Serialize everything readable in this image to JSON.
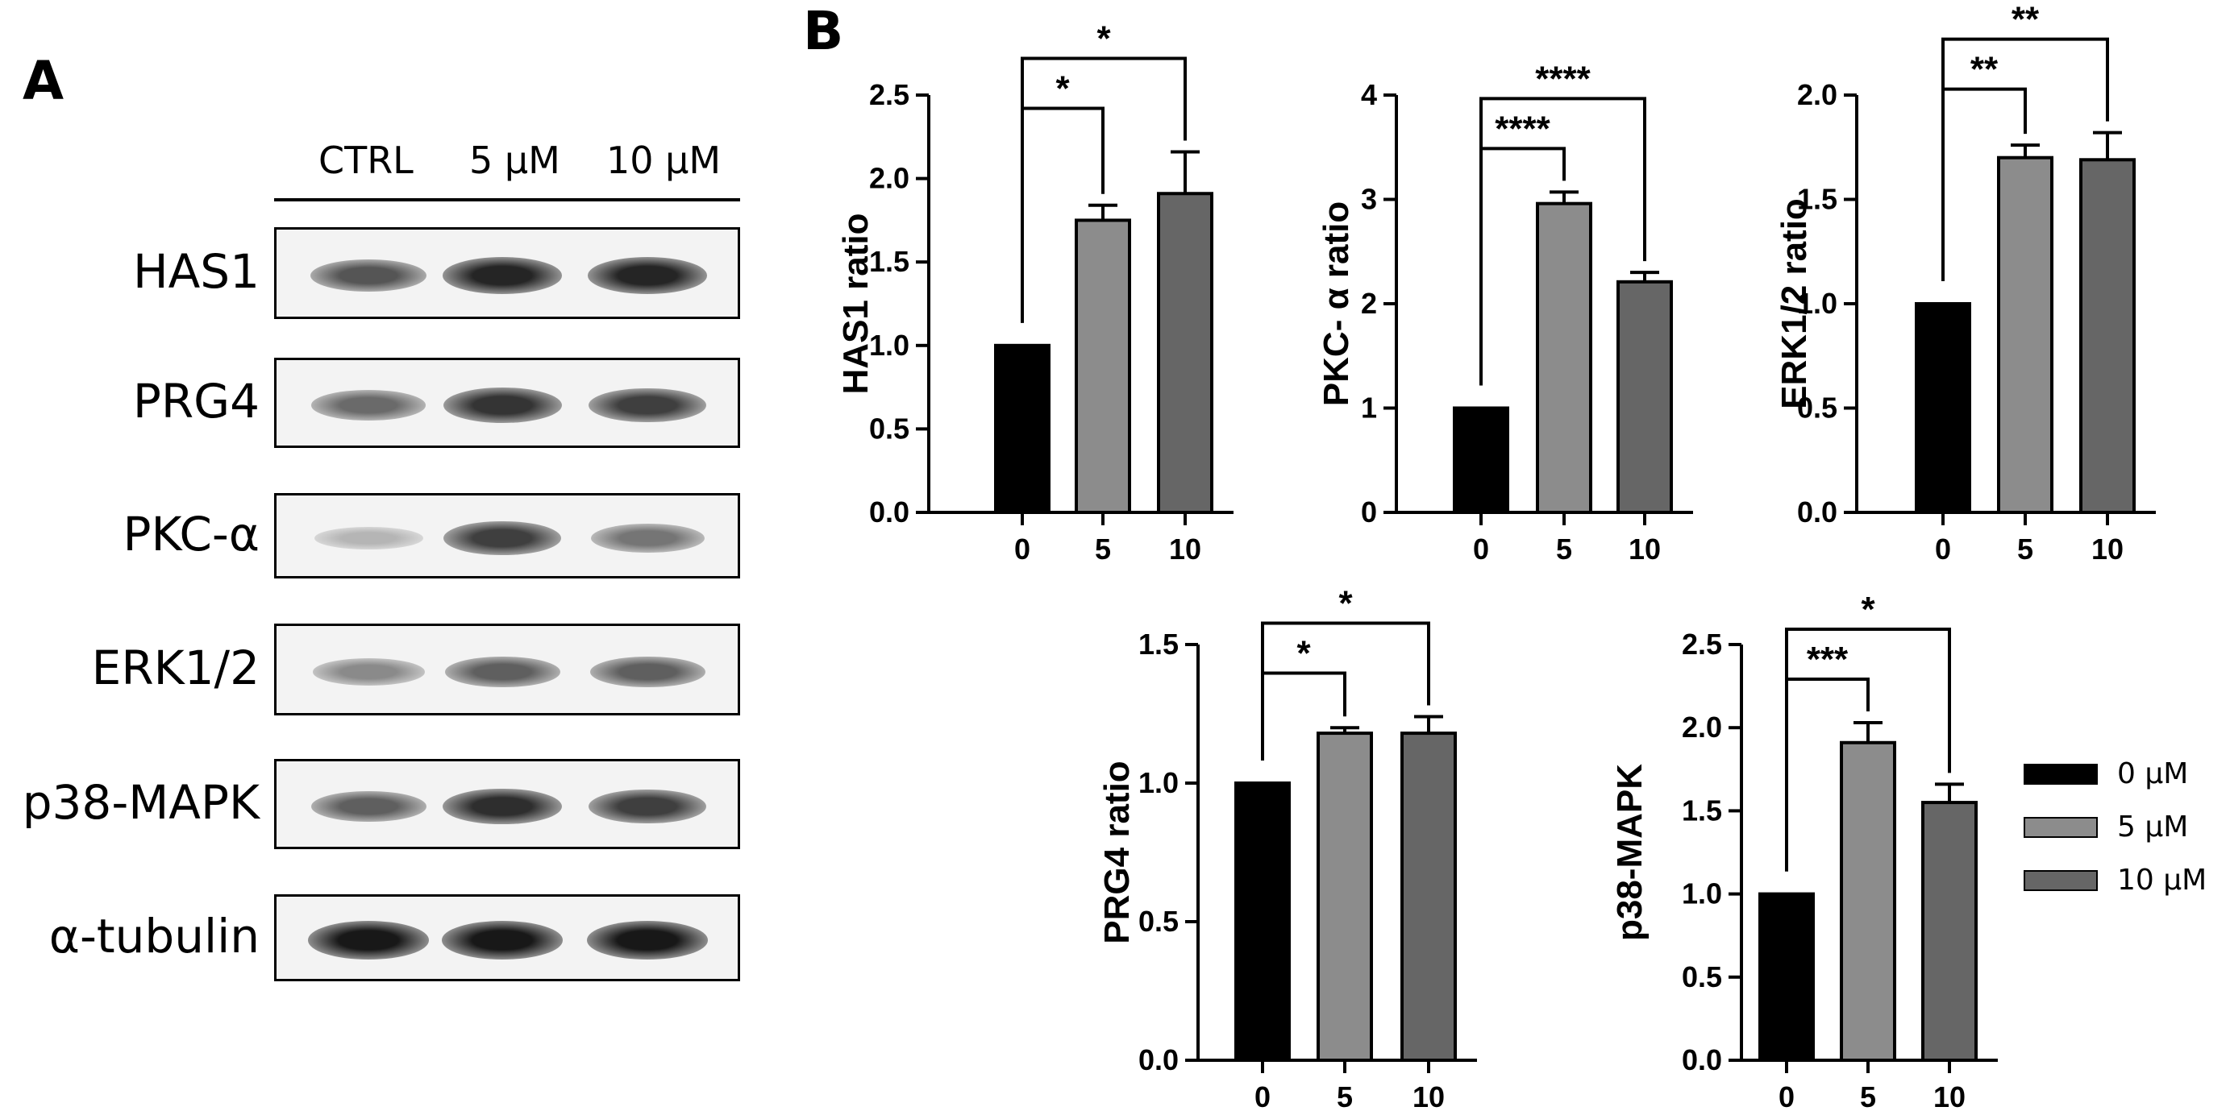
{
  "panel_a": {
    "letter": "A",
    "conditions": [
      "CTRL",
      "5 μM",
      "10 μM"
    ],
    "blots": [
      {
        "label": "HAS1",
        "intensity": [
          0.7,
          0.92,
          0.92
        ]
      },
      {
        "label": "PRG4",
        "intensity": [
          0.6,
          0.85,
          0.8
        ]
      },
      {
        "label": "PKC-α",
        "intensity": [
          0.25,
          0.8,
          0.55
        ]
      },
      {
        "label": "ERK1/2",
        "intensity": [
          0.45,
          0.65,
          0.65
        ]
      },
      {
        "label": "p38-MAPK",
        "intensity": [
          0.65,
          0.88,
          0.8
        ]
      },
      {
        "label": "α-tubulin",
        "intensity": [
          0.98,
          0.98,
          0.98
        ]
      }
    ]
  },
  "panel_b": {
    "letter": "B"
  },
  "legend": {
    "items": [
      {
        "label": "0 μM",
        "color": "#000000"
      },
      {
        "label": "5 μM",
        "color": "#8c8c8c"
      },
      {
        "label": "10 μM",
        "color": "#666666"
      }
    ]
  },
  "colors": {
    "bar_0": "#000000",
    "bar_5": "#8c8c8c",
    "bar_10": "#666666"
  },
  "chart_data": [
    {
      "type": "bar",
      "categories": [
        "0",
        "5",
        "10"
      ],
      "values": [
        1.0,
        1.75,
        1.91
      ],
      "errors": [
        0,
        0.09,
        0.25
      ],
      "ylabel": "HAS1 ratio",
      "ylim": [
        0,
        2.5
      ],
      "yticks": [
        "0.0",
        "0.5",
        "1.0",
        "1.5",
        "2.0",
        "2.5"
      ],
      "significance": [
        {
          "from": "0",
          "to": "5",
          "label": "*"
        },
        {
          "from": "0",
          "to": "10",
          "label": "*"
        }
      ]
    },
    {
      "type": "bar",
      "categories": [
        "0",
        "5",
        "10"
      ],
      "values": [
        1.0,
        2.96,
        2.21
      ],
      "errors": [
        0,
        0.11,
        0.09
      ],
      "ylabel": "PKC- α ratio",
      "ylim": [
        0,
        4
      ],
      "yticks": [
        "0",
        "1",
        "2",
        "3",
        "4"
      ],
      "significance": [
        {
          "from": "0",
          "to": "5",
          "label": "****"
        },
        {
          "from": "0",
          "to": "10",
          "label": "****"
        }
      ]
    },
    {
      "type": "bar",
      "categories": [
        "0",
        "5",
        "10"
      ],
      "values": [
        1.0,
        1.7,
        1.69
      ],
      "errors": [
        0,
        0.06,
        0.13
      ],
      "ylabel": "ERK1/2 ratio",
      "ylim": [
        0,
        2.0
      ],
      "yticks": [
        "0.0",
        "0.5",
        "1.0",
        "1.5",
        "2.0"
      ],
      "significance": [
        {
          "from": "0",
          "to": "5",
          "label": "**"
        },
        {
          "from": "0",
          "to": "10",
          "label": "**"
        }
      ]
    },
    {
      "type": "bar",
      "categories": [
        "0",
        "5",
        "10"
      ],
      "values": [
        1.0,
        1.18,
        1.18
      ],
      "errors": [
        0,
        0.02,
        0.06
      ],
      "ylabel": "PRG4 ratio",
      "ylim": [
        0,
        1.5
      ],
      "yticks": [
        "0.0",
        "0.5",
        "1.0",
        "1.5"
      ],
      "significance": [
        {
          "from": "0",
          "to": "5",
          "label": "*"
        },
        {
          "from": "0",
          "to": "10",
          "label": "*"
        }
      ]
    },
    {
      "type": "bar",
      "categories": [
        "0",
        "5",
        "10"
      ],
      "values": [
        1.0,
        1.91,
        1.55
      ],
      "errors": [
        0,
        0.12,
        0.11
      ],
      "ylabel": "p38-MAPK",
      "ylim": [
        0,
        2.5
      ],
      "yticks": [
        "0.0",
        "0.5",
        "1.0",
        "1.5",
        "2.0",
        "2.5"
      ],
      "significance": [
        {
          "from": "0",
          "to": "5",
          "label": "***"
        },
        {
          "from": "0",
          "to": "10",
          "label": "*"
        }
      ]
    }
  ]
}
